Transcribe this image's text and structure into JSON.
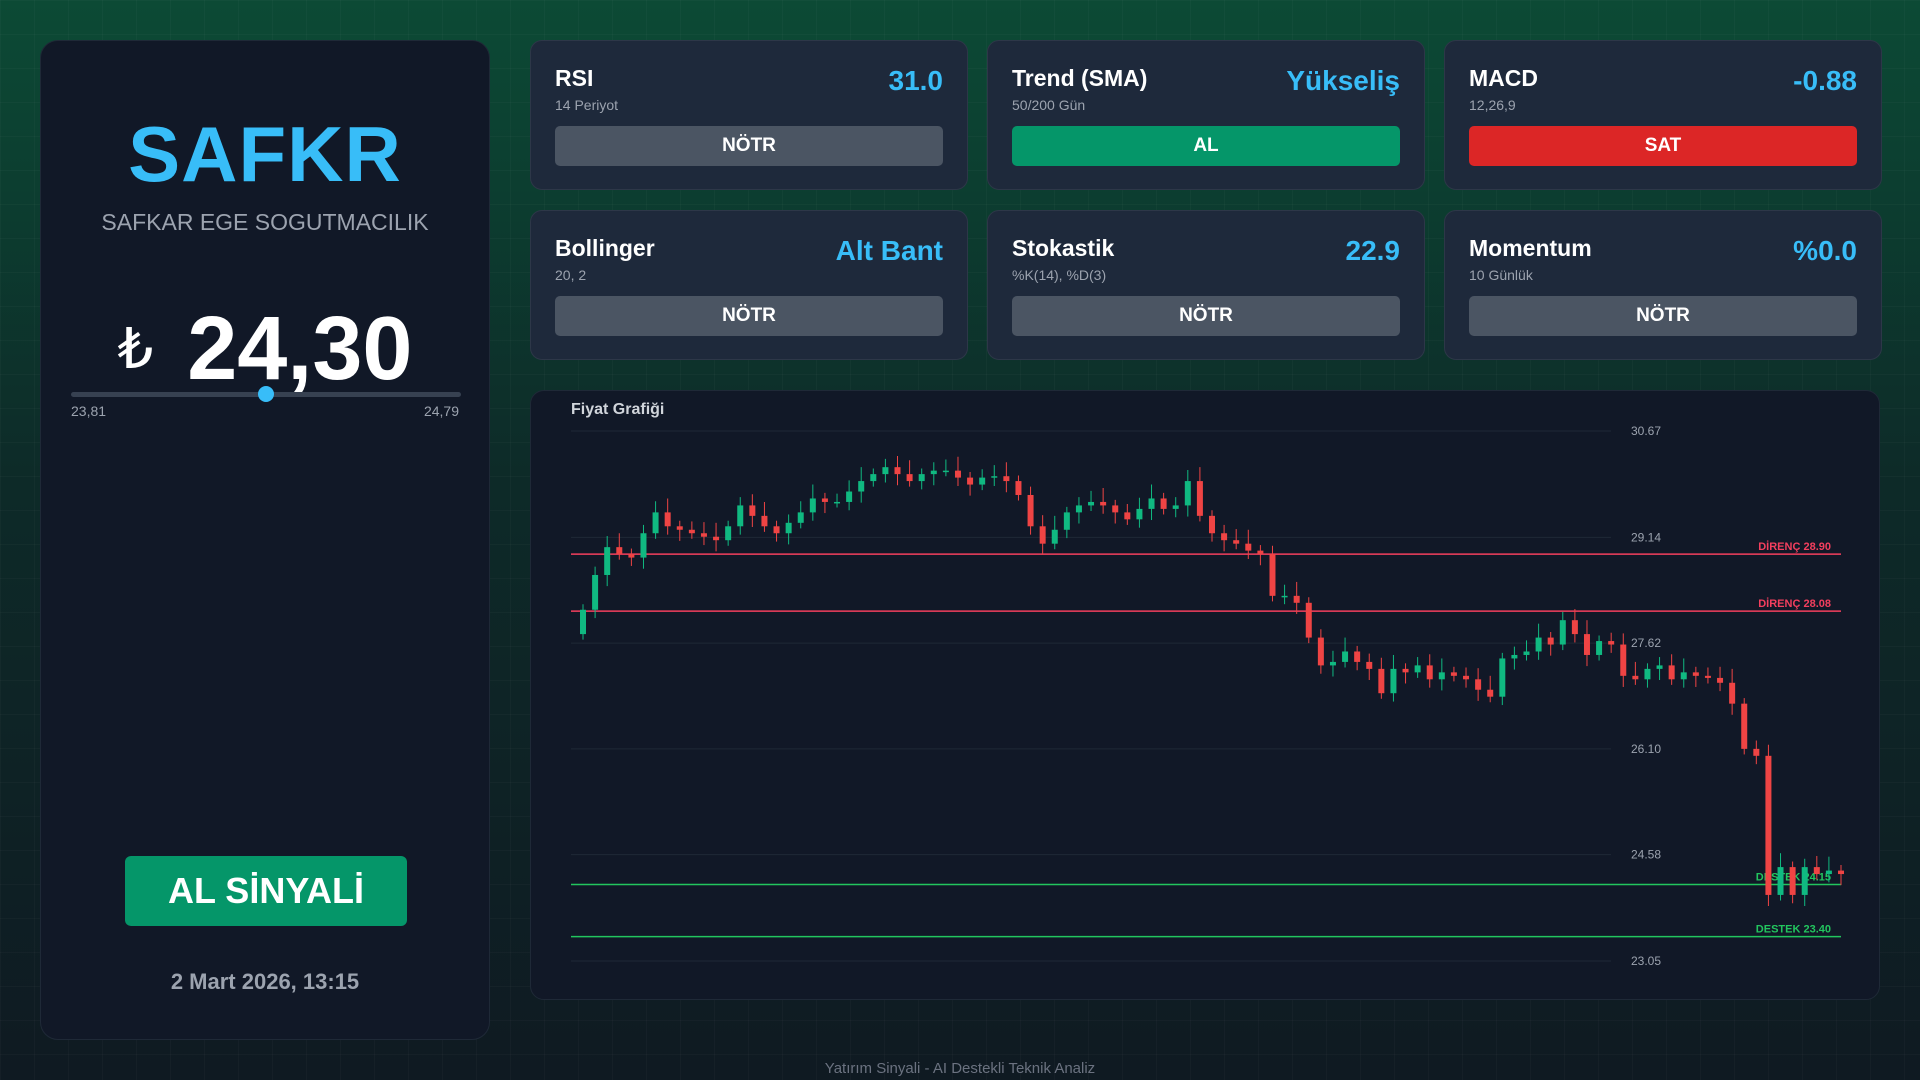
{
  "stock": {
    "ticker": "SAFKR",
    "company": "SAFKAR EGE SOGUTMACILIK",
    "currency_symbol": "₺",
    "price": "24,30",
    "range_low": "23,81",
    "range_high": "24,79",
    "range_position": 0.5,
    "signal": "AL SİNYALİ",
    "datetime": "2 Mart 2026, 13:15"
  },
  "indicators": [
    {
      "title": "RSI",
      "subtitle": "14 Periyot",
      "value": "31.0",
      "action": "NÖTR",
      "status": "neutral"
    },
    {
      "title": "Trend (SMA)",
      "subtitle": "50/200 Gün",
      "value": "Yükseliş",
      "action": "AL",
      "status": "buy"
    },
    {
      "title": "MACD",
      "subtitle": "12,26,9",
      "value": "-0.88",
      "action": "SAT",
      "status": "sell"
    },
    {
      "title": "Bollinger",
      "subtitle": "20, 2",
      "value": "Alt Bant",
      "action": "NÖTR",
      "status": "neutral"
    },
    {
      "title": "Stokastik",
      "subtitle": "%K(14), %D(3)",
      "value": "22.9",
      "action": "NÖTR",
      "status": "neutral"
    },
    {
      "title": "Momentum",
      "subtitle": "10 Günlük",
      "value": "%0.0",
      "action": "NÖTR",
      "status": "neutral"
    }
  ],
  "colors": {
    "accent": "#38bdf8",
    "buy": "#059669",
    "sell": "#dc2626",
    "neutral": "#4b5563",
    "candle_up": "#10b981",
    "candle_down": "#ef4444",
    "resistance": "#f43f5e",
    "support": "#22c55e"
  },
  "chart_data": {
    "type": "candlestick",
    "title": "Fiyat Grafiği",
    "ylim": [
      23.05,
      30.67
    ],
    "y_ticks": [
      "30.67",
      "29.14",
      "27.62",
      "26.10",
      "24.58",
      "23.05"
    ],
    "y_tick_values": [
      30.67,
      29.14,
      27.62,
      26.1,
      24.58,
      23.05
    ],
    "levels": [
      {
        "label": "DİRENÇ 28.90",
        "value": 28.9,
        "kind": "resistance"
      },
      {
        "label": "DİRENÇ 28.08",
        "value": 28.08,
        "kind": "resistance"
      },
      {
        "label": "DESTEK 24.15",
        "value": 24.15,
        "kind": "support"
      },
      {
        "label": "DESTEK 23.40",
        "value": 23.4,
        "kind": "support"
      }
    ],
    "close": [
      28.1,
      28.6,
      29.0,
      28.9,
      28.85,
      29.2,
      29.5,
      29.3,
      29.25,
      29.2,
      29.15,
      29.1,
      29.3,
      29.6,
      29.45,
      29.3,
      29.2,
      29.35,
      29.5,
      29.7,
      29.65,
      29.65,
      29.8,
      29.95,
      30.05,
      30.15,
      30.05,
      29.95,
      30.05,
      30.1,
      30.1,
      30.0,
      29.9,
      30.0,
      30.02,
      29.95,
      29.75,
      29.3,
      29.05,
      29.25,
      29.5,
      29.6,
      29.65,
      29.6,
      29.5,
      29.4,
      29.55,
      29.7,
      29.55,
      29.6,
      29.95,
      29.45,
      29.2,
      29.1,
      29.05,
      28.95,
      28.9,
      28.3,
      28.3,
      28.2,
      27.7,
      27.3,
      27.35,
      27.5,
      27.35,
      27.25,
      26.9,
      27.25,
      27.2,
      27.3,
      27.1,
      27.2,
      27.15,
      27.1,
      26.95,
      26.85,
      27.4,
      27.45,
      27.5,
      27.7,
      27.6,
      27.95,
      27.75,
      27.45,
      27.65,
      27.6,
      27.15,
      27.1,
      27.25,
      27.3,
      27.1,
      27.2,
      27.15,
      27.12,
      27.05,
      26.75,
      26.1,
      26.0,
      24.0,
      24.4,
      24.0,
      24.4,
      24.3,
      24.35,
      24.3
    ]
  },
  "footer": "Yatırım Sinyali - AI Destekli Teknik Analiz"
}
